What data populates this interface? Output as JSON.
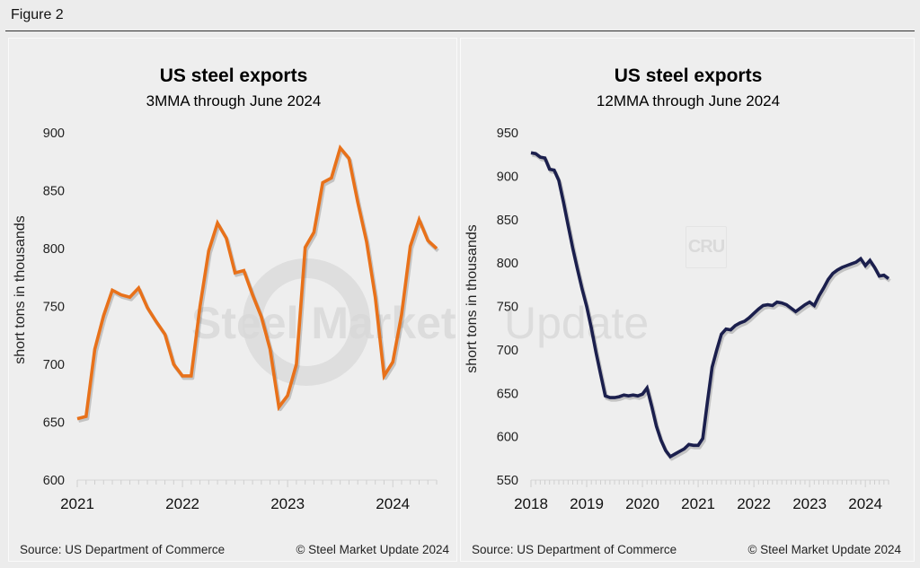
{
  "figure_label": "Figure 2",
  "watermark": {
    "bold": "Steel Market",
    "light": "Update",
    "logo": "CRU"
  },
  "chart_data": [
    {
      "type": "line",
      "title": "US steel exports",
      "subtitle": "3MMA through June 2024",
      "xlabel": "",
      "ylabel": "short tons in thousands",
      "ylim": [
        600,
        900
      ],
      "yticks": [
        600,
        650,
        700,
        750,
        800,
        850,
        900
      ],
      "xticks": [
        "2021",
        "2022",
        "2023",
        "2024"
      ],
      "x_start": "2021-01",
      "x_end": "2024-06",
      "frequency": "monthly",
      "grid": false,
      "legend": "none",
      "series": [
        {
          "name": "US steel exports 3MMA",
          "color": "#e8711a",
          "values": [
            653,
            655,
            713,
            742,
            764,
            760,
            758,
            766,
            749,
            737,
            726,
            700,
            690,
            690,
            750,
            798,
            822,
            809,
            779,
            781,
            760,
            741,
            713,
            663,
            673,
            700,
            801,
            814,
            857,
            861,
            887,
            878,
            840,
            806,
            758,
            690,
            702,
            743,
            802,
            825,
            807,
            800
          ]
        }
      ],
      "source": "Source: US Department of Commerce",
      "copyright": "© Steel Market Update 2024"
    },
    {
      "type": "line",
      "title": "US steel exports",
      "subtitle": "12MMA through June 2024",
      "xlabel": "",
      "ylabel": "short tons in thousands",
      "ylim": [
        550,
        950
      ],
      "yticks": [
        550,
        600,
        650,
        700,
        750,
        800,
        850,
        900,
        950
      ],
      "xticks": [
        "2018",
        "2019",
        "2020",
        "2021",
        "2022",
        "2023",
        "2024"
      ],
      "x_start": "2018-01",
      "x_end": "2024-06",
      "frequency": "monthly",
      "grid": false,
      "legend": "none",
      "series": [
        {
          "name": "US steel exports 12MMA",
          "color": "#1b1f4d",
          "values": [
            927,
            926,
            922,
            921,
            908,
            907,
            895,
            870,
            843,
            817,
            793,
            770,
            750,
            725,
            697,
            672,
            647,
            645,
            645,
            646,
            648,
            647,
            648,
            647,
            649,
            656,
            635,
            612,
            596,
            584,
            577,
            580,
            583,
            586,
            591,
            590,
            590,
            598,
            640,
            680,
            700,
            718,
            724,
            723,
            728,
            731,
            733,
            737,
            742,
            747,
            751,
            752,
            751,
            755,
            754,
            752,
            748,
            744,
            748,
            752,
            755,
            751,
            762,
            771,
            781,
            788,
            792,
            795,
            797,
            799,
            801,
            805,
            797,
            803,
            795,
            785,
            786,
            782
          ]
        }
      ],
      "source": "Source: US Department of Commerce",
      "copyright": "© Steel Market Update 2024"
    }
  ]
}
